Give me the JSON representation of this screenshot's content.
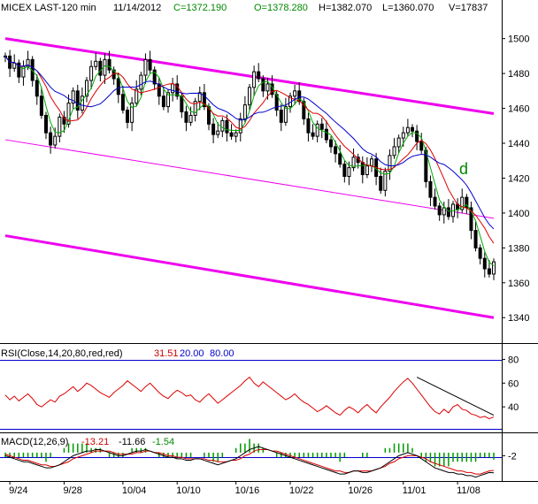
{
  "header": {
    "symbol": "MICEX LAST-120 min",
    "date": "11/14/2012",
    "close": "C=1372.190",
    "open": "O=1378.280",
    "high": "H=1382.070",
    "low": "L=1360.070",
    "volume": "V=17837"
  },
  "rsi_header": {
    "label": "RSI(Close,14,20,80,red,red)",
    "value": "31.51",
    "lower": "20.00",
    "upper": "80.00"
  },
  "macd_header": {
    "label": "MACD(12,26,9)",
    "macd": "-13.21",
    "signal": "-11.66",
    "hist": "-1.54"
  },
  "annotation": "d",
  "colors": {
    "channel": "#ee00ee",
    "bars": "#000000",
    "ma_fast": "#00aa00",
    "ma_mid": "#dd0000",
    "ma_slow": "#0000cc",
    "rsi_line": "#dd0000",
    "macd_hist": "#009900",
    "header_red": "#cc0000",
    "header_green": "#008800",
    "header_blue": "#0000cc"
  },
  "chart_data": [
    {
      "type": "candlestick",
      "panel": "price",
      "ylim": [
        1331,
        1512
      ],
      "yticks": [
        1340,
        1360,
        1380,
        1400,
        1420,
        1440,
        1460,
        1480,
        1500
      ],
      "xticks": [
        "9/24",
        "9/28",
        "10/04",
        "10/10",
        "10/16",
        "10/22",
        "10/26",
        "11/01",
        "11/08"
      ],
      "close_series": [
        1490,
        1483,
        1486,
        1478,
        1484,
        1488,
        1476,
        1467,
        1456,
        1446,
        1439,
        1444,
        1455,
        1451,
        1463,
        1470,
        1459,
        1467,
        1476,
        1484,
        1487,
        1479,
        1488,
        1482,
        1477,
        1468,
        1459,
        1452,
        1463,
        1471,
        1479,
        1488,
        1482,
        1474,
        1467,
        1461,
        1469,
        1474,
        1467,
        1458,
        1452,
        1456,
        1464,
        1469,
        1461,
        1451,
        1445,
        1447,
        1453,
        1446,
        1444,
        1446,
        1454,
        1462,
        1472,
        1481,
        1477,
        1470,
        1474,
        1468,
        1459,
        1452,
        1461,
        1467,
        1470,
        1464,
        1454,
        1446,
        1444,
        1451,
        1448,
        1442,
        1438,
        1434,
        1428,
        1421,
        1426,
        1432,
        1429,
        1422,
        1427,
        1431,
        1421,
        1413,
        1424,
        1433,
        1438,
        1443,
        1446,
        1449,
        1447,
        1441,
        1436,
        1418,
        1409,
        1404,
        1399,
        1403,
        1398,
        1405,
        1402,
        1409,
        1403,
        1390,
        1380,
        1374,
        1368,
        1365,
        1372
      ],
      "channels": [
        {
          "name": "upper",
          "points": [
            [
              0,
              1500
            ],
            [
              108,
              1457
            ]
          ]
        },
        {
          "name": "middle",
          "points": [
            [
              0,
              1442
            ],
            [
              108,
              1397
            ]
          ]
        },
        {
          "name": "lower",
          "points": [
            [
              0,
              1387
            ],
            [
              108,
              1340
            ]
          ]
        }
      ]
    },
    {
      "type": "line",
      "panel": "rsi",
      "ylim": [
        20,
        90
      ],
      "yticks": [
        40,
        60,
        80
      ],
      "reference_lines": [
        20,
        80
      ],
      "trendline": [
        [
          91,
          65
        ],
        [
          108,
          33
        ]
      ],
      "series": [
        {
          "values": [
            50,
            46,
            49,
            45,
            48,
            51,
            47,
            42,
            40,
            43,
            46,
            44,
            49,
            51,
            54,
            57,
            53,
            56,
            60,
            58,
            55,
            52,
            50,
            48,
            52,
            55,
            58,
            62,
            59,
            56,
            53,
            57,
            60,
            56,
            52,
            49,
            47,
            51,
            54,
            52,
            49,
            50,
            46,
            44,
            48,
            51,
            47,
            43,
            46,
            49,
            52,
            55,
            58,
            62,
            65,
            60,
            57,
            61,
            58,
            55,
            52,
            49,
            46,
            48,
            51,
            47,
            44,
            42,
            39,
            36,
            38,
            41,
            38,
            35,
            33,
            37,
            40,
            38,
            35,
            39,
            42,
            38,
            35,
            40,
            44,
            48,
            53,
            57,
            61,
            64,
            60,
            55,
            50,
            45,
            40,
            36,
            34,
            38,
            35,
            40,
            42,
            38,
            37,
            34,
            33,
            31,
            32,
            30,
            31.5
          ]
        }
      ]
    },
    {
      "type": "line",
      "panel": "macd",
      "ylim": [
        -18,
        4
      ],
      "yticks": [
        -2
      ],
      "series": [
        {
          "values": [
            -2,
            -3,
            -4,
            -5,
            -6,
            -6,
            -7,
            -8,
            -9,
            -10,
            -10,
            -9,
            -8,
            -6,
            -4,
            -2,
            -1,
            0,
            1,
            1,
            2,
            2,
            1,
            0,
            -1,
            -2,
            -2,
            -1,
            0,
            1,
            1,
            2,
            1,
            0,
            -1,
            -2,
            -3,
            -3,
            -4,
            -4,
            -5,
            -5,
            -4,
            -4,
            -5,
            -6,
            -7,
            -8,
            -7,
            -6,
            -5,
            -4,
            -2,
            0,
            2,
            3,
            4,
            3,
            2,
            1,
            0,
            -1,
            -2,
            -3,
            -4,
            -5,
            -6,
            -7,
            -8,
            -9,
            -10,
            -11,
            -12,
            -13,
            -14,
            -14,
            -13,
            -12,
            -12,
            -13,
            -13,
            -12,
            -11,
            -10,
            -8,
            -6,
            -4,
            -2,
            -1,
            0,
            -1,
            -2,
            -4,
            -6,
            -8,
            -10,
            -11,
            -12,
            -13,
            -13,
            -14,
            -14,
            -15,
            -15,
            -16,
            -15,
            -14,
            -13,
            -13.21
          ]
        },
        {
          "values": [
            -1,
            -2,
            -3,
            -4,
            -5,
            -5,
            -6,
            -7,
            -8,
            -8,
            -9,
            -9,
            -8,
            -7,
            -6,
            -4,
            -3,
            -2,
            -1,
            0,
            1,
            1,
            1,
            1,
            0,
            -1,
            -1,
            -1,
            -1,
            0,
            0,
            1,
            1,
            0,
            0,
            -1,
            -2,
            -2,
            -3,
            -3,
            -4,
            -4,
            -4,
            -4,
            -4,
            -5,
            -5,
            -6,
            -6,
            -6,
            -5,
            -5,
            -4,
            -2,
            -1,
            1,
            2,
            2,
            2,
            1,
            1,
            0,
            -1,
            -2,
            -3,
            -4,
            -5,
            -6,
            -7,
            -8,
            -9,
            -10,
            -11,
            -12,
            -12,
            -13,
            -13,
            -12,
            -12,
            -12,
            -12,
            -12,
            -11,
            -10,
            -9,
            -7,
            -6,
            -4,
            -3,
            -2,
            -2,
            -2,
            -3,
            -4,
            -6,
            -7,
            -8,
            -9,
            -10,
            -11,
            -12,
            -12,
            -13,
            -13,
            -14,
            -14,
            -13,
            -12,
            -11.66
          ]
        }
      ]
    }
  ]
}
